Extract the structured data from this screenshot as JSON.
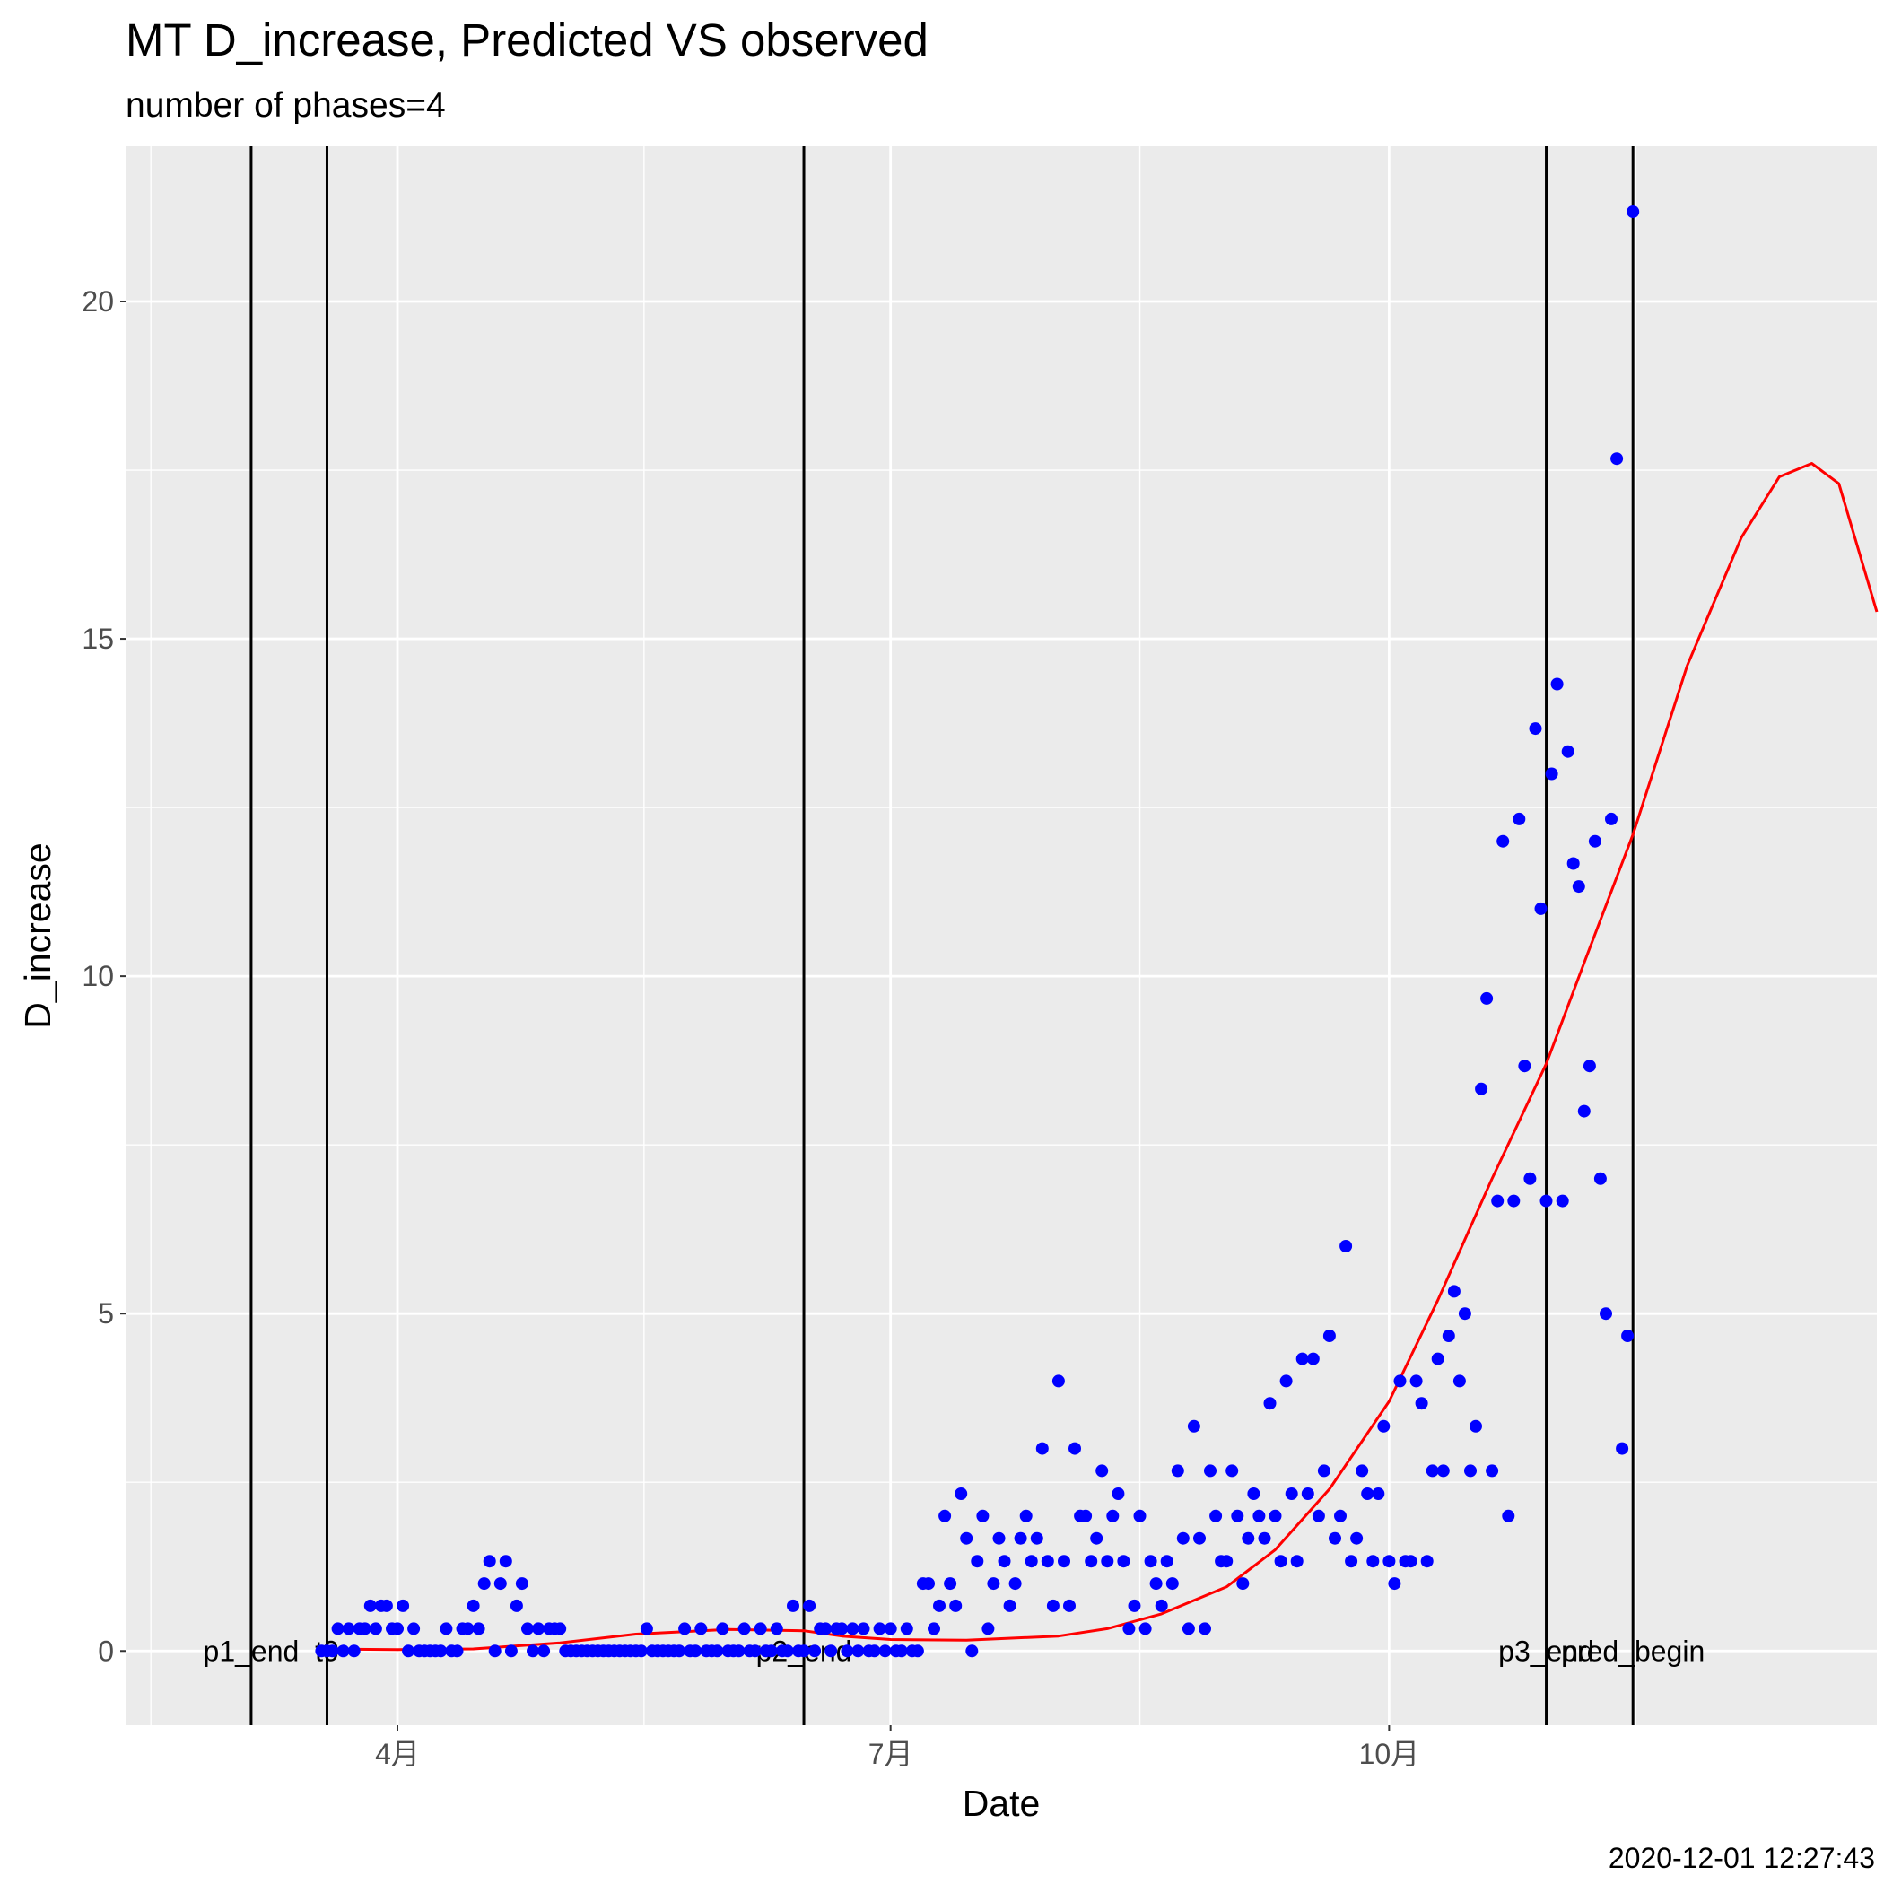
{
  "chart_data": {
    "type": "scatter",
    "title": "MT D_increase, Predicted VS observed",
    "subtitle": "number of phases=4",
    "xlabel": "Date",
    "ylabel": "D_increase",
    "caption": "2020-12-01 12:27:43",
    "x_axis": {
      "type": "date",
      "range": [
        "2020-02-11",
        "2020-12-30"
      ],
      "ticks": [
        {
          "date": "2020-04-01",
          "label": "4月"
        },
        {
          "date": "2020-07-01",
          "label": "7月"
        },
        {
          "date": "2020-10-01",
          "label": "10月"
        }
      ]
    },
    "y_axis": {
      "range": [
        -1.1,
        22.3
      ],
      "ticks": [
        0,
        5,
        10,
        15,
        20
      ]
    },
    "grid": true,
    "colors": {
      "panel": "#EBEBEB",
      "grid": "#FFFFFF",
      "observed": "#0000FF",
      "predicted": "#FF0000",
      "vline": "#000000"
    },
    "vlines": [
      {
        "date": "2020-03-05",
        "label": "p1_end"
      },
      {
        "date": "2020-03-19",
        "label": "t0"
      },
      {
        "date": "2020-06-15",
        "label": "p2_end"
      },
      {
        "date": "2020-10-30",
        "label": "p3_end"
      },
      {
        "date": "2020-11-15",
        "label": "pred_begin"
      }
    ],
    "series": [
      {
        "type": "scatter",
        "points": [
          [
            "2020-03-18",
            0
          ],
          [
            "2020-03-19",
            0
          ],
          [
            "2020-03-20",
            0
          ],
          [
            "2020-03-21",
            0.33
          ],
          [
            "2020-03-22",
            0
          ],
          [
            "2020-03-23",
            0.33
          ],
          [
            "2020-03-24",
            0
          ],
          [
            "2020-03-25",
            0.33
          ],
          [
            "2020-03-26",
            0.33
          ],
          [
            "2020-03-27",
            0.67
          ],
          [
            "2020-03-28",
            0.33
          ],
          [
            "2020-03-29",
            0.67
          ],
          [
            "2020-03-30",
            0.67
          ],
          [
            "2020-03-31",
            0.33
          ],
          [
            "2020-04-01",
            0.33
          ],
          [
            "2020-04-02",
            0.67
          ],
          [
            "2020-04-03",
            0
          ],
          [
            "2020-04-04",
            0.33
          ],
          [
            "2020-04-05",
            0
          ],
          [
            "2020-04-06",
            0
          ],
          [
            "2020-04-07",
            0
          ],
          [
            "2020-04-08",
            0
          ],
          [
            "2020-04-09",
            0
          ],
          [
            "2020-04-10",
            0.33
          ],
          [
            "2020-04-11",
            0
          ],
          [
            "2020-04-12",
            0
          ],
          [
            "2020-04-13",
            0.33
          ],
          [
            "2020-04-14",
            0.33
          ],
          [
            "2020-04-15",
            0.67
          ],
          [
            "2020-04-16",
            0.33
          ],
          [
            "2020-04-17",
            1
          ],
          [
            "2020-04-18",
            1.33
          ],
          [
            "2020-04-19",
            0
          ],
          [
            "2020-04-20",
            1
          ],
          [
            "2020-04-21",
            1.33
          ],
          [
            "2020-04-22",
            0
          ],
          [
            "2020-04-23",
            0.67
          ],
          [
            "2020-04-24",
            1
          ],
          [
            "2020-04-25",
            0.33
          ],
          [
            "2020-04-26",
            0
          ],
          [
            "2020-04-27",
            0.33
          ],
          [
            "2020-04-28",
            0
          ],
          [
            "2020-04-29",
            0.33
          ],
          [
            "2020-04-30",
            0.33
          ],
          [
            "2020-05-01",
            0.33
          ],
          [
            "2020-05-02",
            0
          ],
          [
            "2020-05-03",
            0
          ],
          [
            "2020-05-04",
            0
          ],
          [
            "2020-05-05",
            0
          ],
          [
            "2020-05-06",
            0
          ],
          [
            "2020-05-07",
            0
          ],
          [
            "2020-05-08",
            0
          ],
          [
            "2020-05-09",
            0
          ],
          [
            "2020-05-10",
            0
          ],
          [
            "2020-05-11",
            0
          ],
          [
            "2020-05-12",
            0
          ],
          [
            "2020-05-13",
            0
          ],
          [
            "2020-05-14",
            0
          ],
          [
            "2020-05-15",
            0
          ],
          [
            "2020-05-16",
            0
          ],
          [
            "2020-05-17",
            0.33
          ],
          [
            "2020-05-18",
            0
          ],
          [
            "2020-05-19",
            0
          ],
          [
            "2020-05-20",
            0
          ],
          [
            "2020-05-21",
            0
          ],
          [
            "2020-05-22",
            0
          ],
          [
            "2020-05-23",
            0
          ],
          [
            "2020-05-24",
            0.33
          ],
          [
            "2020-05-25",
            0
          ],
          [
            "2020-05-26",
            0
          ],
          [
            "2020-05-27",
            0.33
          ],
          [
            "2020-05-28",
            0
          ],
          [
            "2020-05-29",
            0
          ],
          [
            "2020-05-30",
            0
          ],
          [
            "2020-05-31",
            0.33
          ],
          [
            "2020-06-01",
            0
          ],
          [
            "2020-06-02",
            0
          ],
          [
            "2020-06-03",
            0
          ],
          [
            "2020-06-04",
            0.33
          ],
          [
            "2020-06-05",
            0
          ],
          [
            "2020-06-06",
            0
          ],
          [
            "2020-06-07",
            0.33
          ],
          [
            "2020-06-08",
            0
          ],
          [
            "2020-06-09",
            0
          ],
          [
            "2020-06-10",
            0.33
          ],
          [
            "2020-06-11",
            0
          ],
          [
            "2020-06-12",
            0
          ],
          [
            "2020-06-13",
            0.67
          ],
          [
            "2020-06-14",
            0
          ],
          [
            "2020-06-15",
            0
          ],
          [
            "2020-06-16",
            0.67
          ],
          [
            "2020-06-17",
            0
          ],
          [
            "2020-06-18",
            0.33
          ],
          [
            "2020-06-19",
            0.33
          ],
          [
            "2020-06-20",
            0
          ],
          [
            "2020-06-21",
            0.33
          ],
          [
            "2020-06-22",
            0.33
          ],
          [
            "2020-06-23",
            0
          ],
          [
            "2020-06-24",
            0.33
          ],
          [
            "2020-06-25",
            0
          ],
          [
            "2020-06-26",
            0.33
          ],
          [
            "2020-06-27",
            0
          ],
          [
            "2020-06-28",
            0
          ],
          [
            "2020-06-29",
            0.33
          ],
          [
            "2020-06-30",
            0
          ],
          [
            "2020-07-01",
            0.33
          ],
          [
            "2020-07-02",
            0
          ],
          [
            "2020-07-03",
            0
          ],
          [
            "2020-07-04",
            0.33
          ],
          [
            "2020-07-05",
            0
          ],
          [
            "2020-07-06",
            0
          ],
          [
            "2020-07-07",
            1
          ],
          [
            "2020-07-08",
            1
          ],
          [
            "2020-07-09",
            0.33
          ],
          [
            "2020-07-10",
            0.67
          ],
          [
            "2020-07-11",
            2
          ],
          [
            "2020-07-12",
            1
          ],
          [
            "2020-07-13",
            0.67
          ],
          [
            "2020-07-14",
            2.33
          ],
          [
            "2020-07-15",
            1.67
          ],
          [
            "2020-07-16",
            0
          ],
          [
            "2020-07-17",
            1.33
          ],
          [
            "2020-07-18",
            2
          ],
          [
            "2020-07-19",
            0.33
          ],
          [
            "2020-07-20",
            1
          ],
          [
            "2020-07-21",
            1.67
          ],
          [
            "2020-07-22",
            1.33
          ],
          [
            "2020-07-23",
            0.67
          ],
          [
            "2020-07-24",
            1
          ],
          [
            "2020-07-25",
            1.67
          ],
          [
            "2020-07-26",
            2
          ],
          [
            "2020-07-27",
            1.33
          ],
          [
            "2020-07-28",
            1.67
          ],
          [
            "2020-07-29",
            3
          ],
          [
            "2020-07-30",
            1.33
          ],
          [
            "2020-07-31",
            0.67
          ],
          [
            "2020-08-01",
            4
          ],
          [
            "2020-08-02",
            1.33
          ],
          [
            "2020-08-03",
            0.67
          ],
          [
            "2020-08-04",
            3
          ],
          [
            "2020-08-05",
            2
          ],
          [
            "2020-08-06",
            2
          ],
          [
            "2020-08-07",
            1.33
          ],
          [
            "2020-08-08",
            1.67
          ],
          [
            "2020-08-09",
            2.67
          ],
          [
            "2020-08-10",
            1.33
          ],
          [
            "2020-08-11",
            2
          ],
          [
            "2020-08-12",
            2.33
          ],
          [
            "2020-08-13",
            1.33
          ],
          [
            "2020-08-14",
            0.33
          ],
          [
            "2020-08-15",
            0.67
          ],
          [
            "2020-08-16",
            2
          ],
          [
            "2020-08-17",
            0.33
          ],
          [
            "2020-08-18",
            1.33
          ],
          [
            "2020-08-19",
            1
          ],
          [
            "2020-08-20",
            0.67
          ],
          [
            "2020-08-21",
            1.33
          ],
          [
            "2020-08-22",
            1
          ],
          [
            "2020-08-23",
            2.67
          ],
          [
            "2020-08-24",
            1.67
          ],
          [
            "2020-08-25",
            0.33
          ],
          [
            "2020-08-26",
            3.33
          ],
          [
            "2020-08-27",
            1.67
          ],
          [
            "2020-08-28",
            0.33
          ],
          [
            "2020-08-29",
            2.67
          ],
          [
            "2020-08-30",
            2
          ],
          [
            "2020-08-31",
            1.33
          ],
          [
            "2020-09-01",
            1.33
          ],
          [
            "2020-09-02",
            2.67
          ],
          [
            "2020-09-03",
            2
          ],
          [
            "2020-09-04",
            1
          ],
          [
            "2020-09-05",
            1.67
          ],
          [
            "2020-09-06",
            2.33
          ],
          [
            "2020-09-07",
            2
          ],
          [
            "2020-09-08",
            1.67
          ],
          [
            "2020-09-09",
            3.67
          ],
          [
            "2020-09-10",
            2
          ],
          [
            "2020-09-11",
            1.33
          ],
          [
            "2020-09-12",
            4
          ],
          [
            "2020-09-13",
            2.33
          ],
          [
            "2020-09-14",
            1.33
          ],
          [
            "2020-09-15",
            4.33
          ],
          [
            "2020-09-16",
            2.33
          ],
          [
            "2020-09-17",
            4.33
          ],
          [
            "2020-09-18",
            2
          ],
          [
            "2020-09-19",
            2.67
          ],
          [
            "2020-09-20",
            4.67
          ],
          [
            "2020-09-21",
            1.67
          ],
          [
            "2020-09-22",
            2
          ],
          [
            "2020-09-23",
            6
          ],
          [
            "2020-09-24",
            1.33
          ],
          [
            "2020-09-25",
            1.67
          ],
          [
            "2020-09-26",
            2.67
          ],
          [
            "2020-09-27",
            2.33
          ],
          [
            "2020-09-28",
            1.33
          ],
          [
            "2020-09-29",
            2.33
          ],
          [
            "2020-09-30",
            3.33
          ],
          [
            "2020-10-01",
            1.33
          ],
          [
            "2020-10-02",
            1
          ],
          [
            "2020-10-03",
            4
          ],
          [
            "2020-10-04",
            1.33
          ],
          [
            "2020-10-05",
            1.33
          ],
          [
            "2020-10-06",
            4
          ],
          [
            "2020-10-07",
            3.67
          ],
          [
            "2020-10-08",
            1.33
          ],
          [
            "2020-10-09",
            2.67
          ],
          [
            "2020-10-10",
            4.33
          ],
          [
            "2020-10-11",
            2.67
          ],
          [
            "2020-10-12",
            4.67
          ],
          [
            "2020-10-13",
            5.33
          ],
          [
            "2020-10-14",
            4
          ],
          [
            "2020-10-15",
            5
          ],
          [
            "2020-10-16",
            2.67
          ],
          [
            "2020-10-17",
            3.33
          ],
          [
            "2020-10-18",
            8.33
          ],
          [
            "2020-10-19",
            9.67
          ],
          [
            "2020-10-20",
            2.67
          ],
          [
            "2020-10-21",
            6.67
          ],
          [
            "2020-10-22",
            12
          ],
          [
            "2020-10-23",
            2
          ],
          [
            "2020-10-24",
            6.67
          ],
          [
            "2020-10-25",
            12.33
          ],
          [
            "2020-10-26",
            8.67
          ],
          [
            "2020-10-27",
            7
          ],
          [
            "2020-10-28",
            13.67
          ],
          [
            "2020-10-29",
            11
          ],
          [
            "2020-10-30",
            6.67
          ],
          [
            "2020-10-31",
            13
          ],
          [
            "2020-11-01",
            14.33
          ],
          [
            "2020-11-02",
            6.67
          ],
          [
            "2020-11-03",
            13.33
          ],
          [
            "2020-11-04",
            11.67
          ],
          [
            "2020-11-05",
            11.33
          ],
          [
            "2020-11-06",
            8
          ],
          [
            "2020-11-07",
            8.67
          ],
          [
            "2020-11-08",
            12
          ],
          [
            "2020-11-09",
            7
          ],
          [
            "2020-11-10",
            5
          ],
          [
            "2020-11-11",
            12.33
          ],
          [
            "2020-11-12",
            17.67
          ],
          [
            "2020-11-13",
            3
          ],
          [
            "2020-11-14",
            4.67
          ],
          [
            "2020-11-15",
            21.33
          ]
        ]
      },
      {
        "type": "line",
        "points": [
          [
            "2020-03-18",
            0.03
          ],
          [
            "2020-04-01",
            0.02
          ],
          [
            "2020-04-15",
            0.03
          ],
          [
            "2020-05-01",
            0.12
          ],
          [
            "2020-05-15",
            0.25
          ],
          [
            "2020-06-01",
            0.32
          ],
          [
            "2020-06-15",
            0.3
          ],
          [
            "2020-06-22",
            0.22
          ],
          [
            "2020-07-01",
            0.17
          ],
          [
            "2020-07-15",
            0.16
          ],
          [
            "2020-08-01",
            0.22
          ],
          [
            "2020-08-10",
            0.33
          ],
          [
            "2020-08-20",
            0.55
          ],
          [
            "2020-09-01",
            0.95
          ],
          [
            "2020-09-10",
            1.5
          ],
          [
            "2020-09-20",
            2.4
          ],
          [
            "2020-10-01",
            3.7
          ],
          [
            "2020-10-10",
            5.2
          ],
          [
            "2020-10-20",
            7
          ],
          [
            "2020-10-30",
            8.7
          ],
          [
            "2020-11-06",
            10.2
          ],
          [
            "2020-11-15",
            12.1
          ],
          [
            "2020-11-25",
            14.6
          ],
          [
            "2020-12-05",
            16.5
          ],
          [
            "2020-12-12",
            17.4
          ],
          [
            "2020-12-18",
            17.6
          ],
          [
            "2020-12-23",
            17.3
          ],
          [
            "2020-12-30",
            15.4
          ]
        ]
      }
    ]
  }
}
